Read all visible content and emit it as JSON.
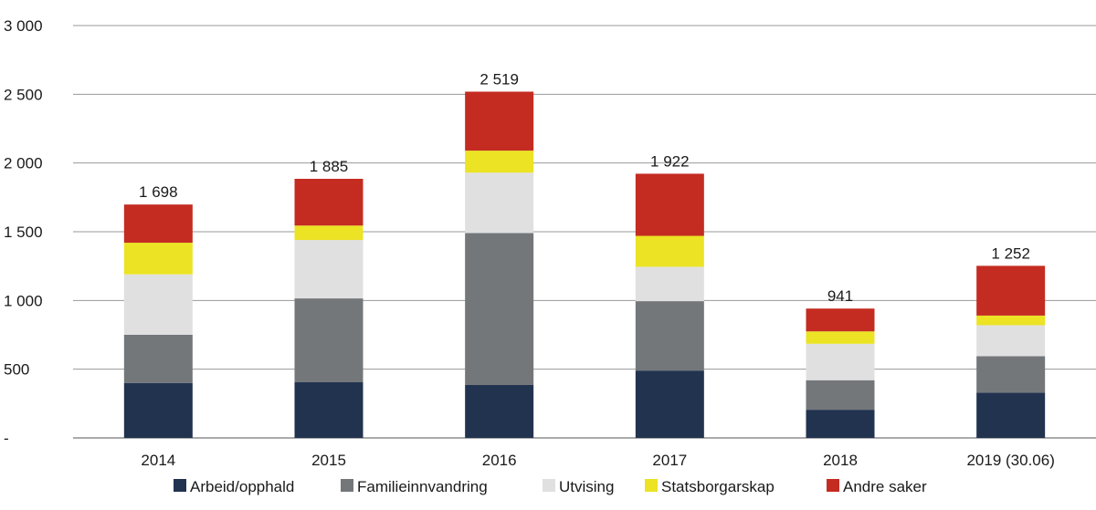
{
  "chart_data": {
    "type": "bar",
    "stacked": true,
    "categories": [
      "2014",
      "2015",
      "2016",
      "2017",
      "2018",
      "2019 (30.06)"
    ],
    "series": [
      {
        "name": "Arbeid/opphald",
        "color": "#223350",
        "values": [
          400,
          405,
          385,
          490,
          205,
          330
        ]
      },
      {
        "name": "Familieinnvandring",
        "color": "#73777a",
        "values": [
          350,
          610,
          1105,
          505,
          215,
          265
        ]
      },
      {
        "name": "Utvising",
        "color": "#e0e0e0",
        "values": [
          440,
          425,
          440,
          250,
          265,
          225
        ]
      },
      {
        "name": "Statsborgarskap",
        "color": "#ebe324",
        "values": [
          230,
          105,
          160,
          225,
          90,
          70
        ]
      },
      {
        "name": "Andre saker",
        "color": "#c42c21",
        "values": [
          278,
          340,
          429,
          452,
          166,
          362
        ]
      }
    ],
    "totals": [
      "1 698",
      "1 885",
      "2 519",
      "1 922",
      "941",
      "1 252"
    ],
    "yticks": [
      {
        "value": 0,
        "label": "-"
      },
      {
        "value": 500,
        "label": "500"
      },
      {
        "value": 1000,
        "label": "1 000"
      },
      {
        "value": 1500,
        "label": "1 500"
      },
      {
        "value": 2000,
        "label": "2 000"
      },
      {
        "value": 2500,
        "label": "2 500"
      },
      {
        "value": 3000,
        "label": "3 000"
      }
    ],
    "ylim": [
      0,
      3000
    ],
    "grid": true,
    "legend": "bottom"
  }
}
